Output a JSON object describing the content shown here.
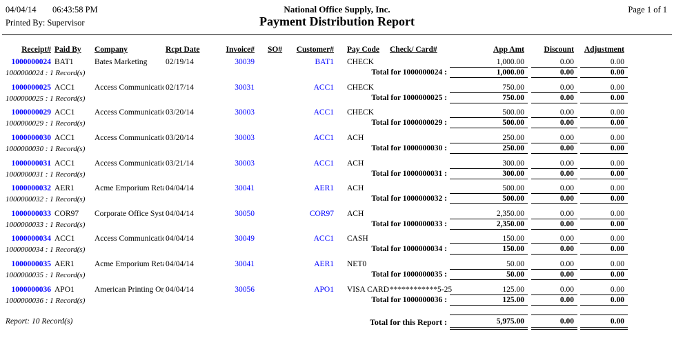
{
  "report": {
    "date": "04/04/14",
    "time": "06:43:58 PM",
    "printed_by": "Printed By: Supervisor",
    "company": "National Office Supply, Inc.",
    "title": "Payment Distribution Report",
    "page": "Page 1 of 1"
  },
  "colors": {
    "link_blue": "#0000FF",
    "text": "#000000"
  },
  "columns": {
    "receipt": "Receipt#",
    "paid_by": "Paid By",
    "company": "Company",
    "rcpt_date": "Rcpt Date",
    "invoice": "Invoice#",
    "so": "SO#",
    "customer": "Customer#",
    "pay_code": "Pay Code",
    "check_card": "Check/ Card#",
    "app_amt": "App Amt",
    "discount": "Discount",
    "adjustment": "Adjustment"
  },
  "rows": [
    {
      "receipt": "1000000024",
      "paid_by": "BAT1",
      "company": "Bates Marketing",
      "rcpt_date": "02/19/14",
      "invoice": "30039",
      "so": "",
      "customer": "BAT1",
      "pay_code": "CHECK",
      "check_card": "",
      "app_amt": "1,000.00",
      "discount": "0.00",
      "adjustment": "0.00",
      "record_note": "1000000024 : 1 Record(s)",
      "total_label": "Total for 1000000024 :",
      "total_app": "1,000.00",
      "total_discount": "0.00",
      "total_adjustment": "0.00"
    },
    {
      "receipt": "1000000025",
      "paid_by": "ACC1",
      "company": "Access Communication",
      "rcpt_date": "02/17/14",
      "invoice": "30031",
      "so": "",
      "customer": "ACC1",
      "pay_code": "CHECK",
      "check_card": "",
      "app_amt": "750.00",
      "discount": "0.00",
      "adjustment": "0.00",
      "record_note": "1000000025 : 1 Record(s)",
      "total_label": "Total for 1000000025 :",
      "total_app": "750.00",
      "total_discount": "0.00",
      "total_adjustment": "0.00"
    },
    {
      "receipt": "1000000029",
      "paid_by": "ACC1",
      "company": "Access Communication",
      "rcpt_date": "03/20/14",
      "invoice": "30003",
      "so": "",
      "customer": "ACC1",
      "pay_code": "CHECK",
      "check_card": "",
      "app_amt": "500.00",
      "discount": "0.00",
      "adjustment": "0.00",
      "record_note": "1000000029 : 1 Record(s)",
      "total_label": "Total for 1000000029 :",
      "total_app": "500.00",
      "total_discount": "0.00",
      "total_adjustment": "0.00"
    },
    {
      "receipt": "1000000030",
      "paid_by": "ACC1",
      "company": "Access Communication",
      "rcpt_date": "03/20/14",
      "invoice": "30003",
      "so": "",
      "customer": "ACC1",
      "pay_code": "ACH",
      "check_card": "",
      "app_amt": "250.00",
      "discount": "0.00",
      "adjustment": "0.00",
      "record_note": "1000000030 : 1 Record(s)",
      "total_label": "Total for 1000000030 :",
      "total_app": "250.00",
      "total_discount": "0.00",
      "total_adjustment": "0.00"
    },
    {
      "receipt": "1000000031",
      "paid_by": "ACC1",
      "company": "Access Communication",
      "rcpt_date": "03/21/14",
      "invoice": "30003",
      "so": "",
      "customer": "ACC1",
      "pay_code": "ACH",
      "check_card": "",
      "app_amt": "300.00",
      "discount": "0.00",
      "adjustment": "0.00",
      "record_note": "1000000031 : 1 Record(s)",
      "total_label": "Total for 1000000031 :",
      "total_app": "300.00",
      "total_discount": "0.00",
      "total_adjustment": "0.00"
    },
    {
      "receipt": "1000000032",
      "paid_by": "AER1",
      "company": "Acme Emporium Retail",
      "rcpt_date": "04/04/14",
      "invoice": "30041",
      "so": "",
      "customer": "AER1",
      "pay_code": "ACH",
      "check_card": "",
      "app_amt": "500.00",
      "discount": "0.00",
      "adjustment": "0.00",
      "record_note": "1000000032 : 1 Record(s)",
      "total_label": "Total for 1000000032 :",
      "total_app": "500.00",
      "total_discount": "0.00",
      "total_adjustment": "0.00"
    },
    {
      "receipt": "1000000033",
      "paid_by": "COR97",
      "company": "Corporate Office System",
      "rcpt_date": "04/04/14",
      "invoice": "30050",
      "so": "",
      "customer": "COR97",
      "pay_code": "ACH",
      "check_card": "",
      "app_amt": "2,350.00",
      "discount": "0.00",
      "adjustment": "0.00",
      "record_note": "1000000033 : 1 Record(s)",
      "total_label": "Total for 1000000033 :",
      "total_app": "2,350.00",
      "total_discount": "0.00",
      "total_adjustment": "0.00"
    },
    {
      "receipt": "1000000034",
      "paid_by": "ACC1",
      "company": "Access Communication",
      "rcpt_date": "04/04/14",
      "invoice": "30049",
      "so": "",
      "customer": "ACC1",
      "pay_code": "CASH",
      "check_card": "",
      "app_amt": "150.00",
      "discount": "0.00",
      "adjustment": "0.00",
      "record_note": "1000000034 : 1 Record(s)",
      "total_label": "Total for 1000000034 :",
      "total_app": "150.00",
      "total_discount": "0.00",
      "total_adjustment": "0.00"
    },
    {
      "receipt": "1000000035",
      "paid_by": "AER1",
      "company": "Acme Emporium Retail",
      "rcpt_date": "04/04/14",
      "invoice": "30041",
      "so": "",
      "customer": "AER1",
      "pay_code": "NET0",
      "check_card": "",
      "app_amt": "50.00",
      "discount": "0.00",
      "adjustment": "0.00",
      "record_note": "1000000035 : 1 Record(s)",
      "total_label": "Total for 1000000035 :",
      "total_app": "50.00",
      "total_discount": "0.00",
      "total_adjustment": "0.00"
    },
    {
      "receipt": "1000000036",
      "paid_by": "APO1",
      "company": "American Printing Orga",
      "rcpt_date": "04/04/14",
      "invoice": "30056",
      "so": "",
      "customer": "APO1",
      "pay_code": "VISA CARD",
      "check_card": "************5-25",
      "app_amt": "125.00",
      "discount": "0.00",
      "adjustment": "0.00",
      "record_note": "1000000036 : 1 Record(s)",
      "total_label": "Total for 1000000036 :",
      "total_app": "125.00",
      "total_discount": "0.00",
      "total_adjustment": "0.00"
    }
  ],
  "footer": {
    "report_note": "Report: 10 Record(s)",
    "total_label": "Total for this Report :",
    "total_app": "5,975.00",
    "total_discount": "0.00",
    "total_adjustment": "0.00"
  }
}
